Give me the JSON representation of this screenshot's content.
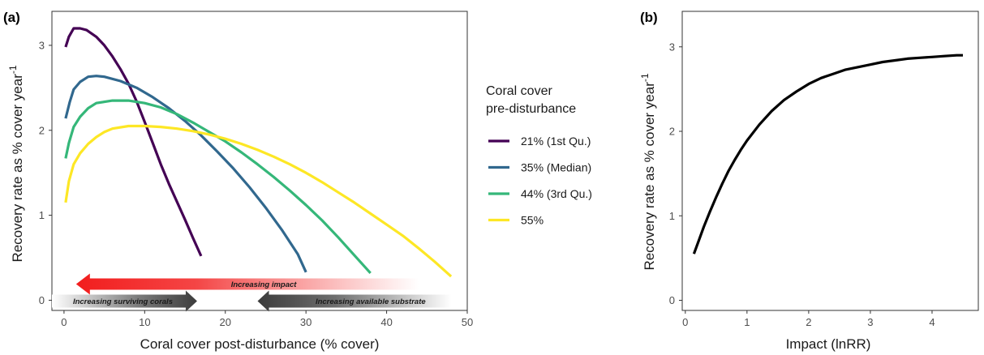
{
  "chart_data": [
    {
      "panel_label": "(a)",
      "type": "line",
      "xlabel": "Coral cover post-disturbance (% cover)",
      "ylabel": "Recovery rate as % cover year",
      "ylabel_superscript": "-1",
      "xlim": [
        -1.5,
        50
      ],
      "ylim": [
        -0.12,
        3.4
      ],
      "xticks": [
        0,
        10,
        20,
        30,
        40,
        50
      ],
      "yticks": [
        0,
        1,
        2,
        3
      ],
      "grid": false,
      "legend": {
        "title_line1": "Coral cover",
        "title_line2": "pre-disturbance",
        "placement": "right"
      },
      "series": [
        {
          "name": "21% (1st Qu.)",
          "color": "#440154",
          "points": [
            [
              0.2,
              2.98
            ],
            [
              0.6,
              3.1
            ],
            [
              1.2,
              3.2
            ],
            [
              2,
              3.2
            ],
            [
              2.8,
              3.18
            ],
            [
              4,
              3.1
            ],
            [
              5,
              3.0
            ],
            [
              6,
              2.87
            ],
            [
              7,
              2.72
            ],
            [
              8,
              2.55
            ],
            [
              9,
              2.34
            ],
            [
              10,
              2.1
            ],
            [
              11,
              1.85
            ],
            [
              12,
              1.6
            ],
            [
              13,
              1.37
            ],
            [
              14,
              1.16
            ],
            [
              15,
              0.95
            ],
            [
              16,
              0.73
            ],
            [
              17,
              0.52
            ]
          ]
        },
        {
          "name": "35% (Median)",
          "color": "#31688e",
          "points": [
            [
              0.2,
              2.14
            ],
            [
              0.7,
              2.33
            ],
            [
              1.2,
              2.48
            ],
            [
              2,
              2.57
            ],
            [
              3,
              2.63
            ],
            [
              4,
              2.64
            ],
            [
              5,
              2.63
            ],
            [
              7,
              2.58
            ],
            [
              9,
              2.5
            ],
            [
              11,
              2.39
            ],
            [
              13,
              2.26
            ],
            [
              15,
              2.11
            ],
            [
              17,
              1.94
            ],
            [
              19,
              1.75
            ],
            [
              21,
              1.55
            ],
            [
              23,
              1.33
            ],
            [
              25,
              1.09
            ],
            [
              27,
              0.83
            ],
            [
              29,
              0.54
            ],
            [
              30,
              0.33
            ]
          ]
        },
        {
          "name": "44% (3rd Qu.)",
          "color": "#35b779",
          "points": [
            [
              0.2,
              1.67
            ],
            [
              0.6,
              1.85
            ],
            [
              1.2,
              2.04
            ],
            [
              2,
              2.16
            ],
            [
              3,
              2.26
            ],
            [
              4,
              2.32
            ],
            [
              6,
              2.35
            ],
            [
              8,
              2.35
            ],
            [
              10,
              2.32
            ],
            [
              12,
              2.27
            ],
            [
              14,
              2.19
            ],
            [
              16,
              2.09
            ],
            [
              18,
              1.98
            ],
            [
              20,
              1.87
            ],
            [
              22,
              1.74
            ],
            [
              24,
              1.6
            ],
            [
              26,
              1.45
            ],
            [
              28,
              1.29
            ],
            [
              30,
              1.12
            ],
            [
              32,
              0.94
            ],
            [
              34,
              0.74
            ],
            [
              36,
              0.53
            ],
            [
              38,
              0.32
            ]
          ]
        },
        {
          "name": "55%",
          "color": "#fde725",
          "points": [
            [
              0.2,
              1.15
            ],
            [
              0.6,
              1.4
            ],
            [
              1.2,
              1.6
            ],
            [
              2,
              1.73
            ],
            [
              3,
              1.84
            ],
            [
              4,
              1.92
            ],
            [
              5,
              1.98
            ],
            [
              6,
              2.02
            ],
            [
              8,
              2.05
            ],
            [
              10,
              2.05
            ],
            [
              12,
              2.04
            ],
            [
              14,
              2.02
            ],
            [
              16,
              1.99
            ],
            [
              18,
              1.95
            ],
            [
              20,
              1.9
            ],
            [
              22,
              1.84
            ],
            [
              24,
              1.77
            ],
            [
              26,
              1.69
            ],
            [
              28,
              1.6
            ],
            [
              30,
              1.5
            ],
            [
              32,
              1.39
            ],
            [
              34,
              1.27
            ],
            [
              36,
              1.15
            ],
            [
              38,
              1.02
            ],
            [
              40,
              0.89
            ],
            [
              42,
              0.76
            ],
            [
              44,
              0.61
            ],
            [
              46,
              0.45
            ],
            [
              48,
              0.28
            ]
          ]
        }
      ],
      "annotations": {
        "impact_arrow": {
          "label": "Increasing impact",
          "from_x": 44,
          "to_x": 1.5,
          "y": 0.19,
          "color": "#f44040"
        },
        "surviving_arrow": {
          "label": "Increasing surviving corals",
          "from_x": -1.5,
          "to_x": 16.5,
          "y": -0.01,
          "color": "#4a4a4a"
        },
        "substrate_arrow": {
          "label": "Increasing available substrate",
          "from_x": 48,
          "to_x": 24,
          "y": -0.01,
          "color": "#4a4a4a"
        }
      }
    },
    {
      "panel_label": "(b)",
      "type": "line",
      "xlabel": "Impact (lnRR)",
      "ylabel": "Recovery rate as % cover year",
      "ylabel_superscript": "-1",
      "xlim": [
        -0.05,
        4.75
      ],
      "ylim": [
        -0.12,
        3.42
      ],
      "xticks": [
        0,
        1,
        2,
        3,
        4
      ],
      "yticks": [
        0,
        1,
        2,
        3
      ],
      "grid": false,
      "series": [
        {
          "name": "",
          "color": "#000000",
          "points": [
            [
              0.14,
              0.55
            ],
            [
              0.2,
              0.67
            ],
            [
              0.3,
              0.87
            ],
            [
              0.4,
              1.05
            ],
            [
              0.5,
              1.22
            ],
            [
              0.6,
              1.38
            ],
            [
              0.7,
              1.53
            ],
            [
              0.8,
              1.66
            ],
            [
              0.9,
              1.78
            ],
            [
              1.0,
              1.89
            ],
            [
              1.2,
              2.08
            ],
            [
              1.4,
              2.24
            ],
            [
              1.6,
              2.37
            ],
            [
              1.8,
              2.47
            ],
            [
              2.0,
              2.56
            ],
            [
              2.2,
              2.63
            ],
            [
              2.4,
              2.68
            ],
            [
              2.6,
              2.73
            ],
            [
              2.8,
              2.76
            ],
            [
              3.0,
              2.79
            ],
            [
              3.2,
              2.82
            ],
            [
              3.4,
              2.84
            ],
            [
              3.6,
              2.86
            ],
            [
              3.8,
              2.87
            ],
            [
              4.0,
              2.88
            ],
            [
              4.2,
              2.89
            ],
            [
              4.4,
              2.9
            ],
            [
              4.5,
              2.9
            ]
          ]
        }
      ]
    }
  ]
}
